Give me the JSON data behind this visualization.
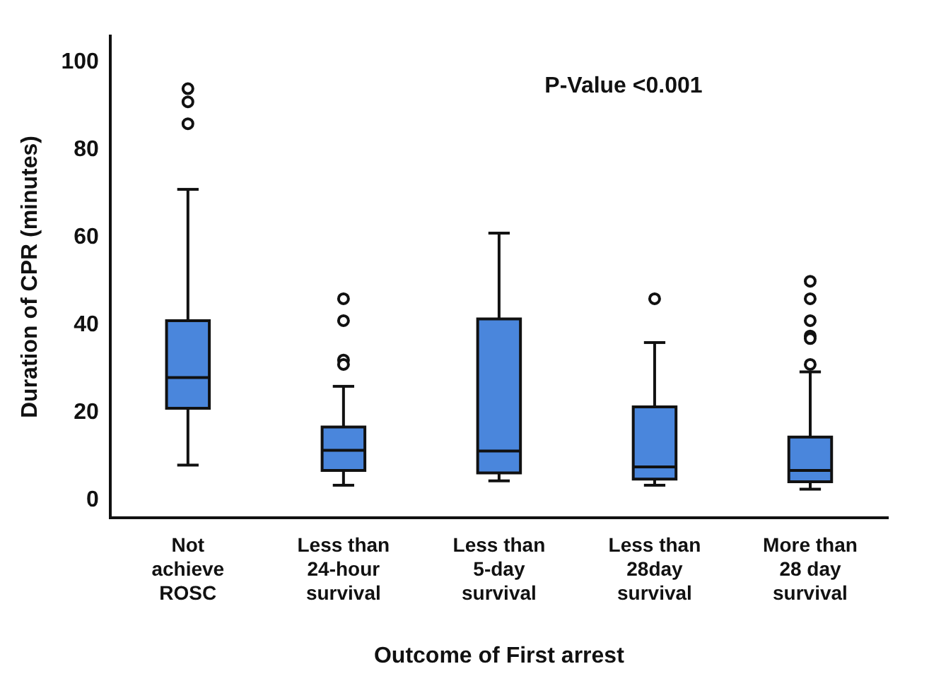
{
  "chart_data": {
    "type": "box",
    "xlabel": "Outcome of First arrest",
    "ylabel": "Duration of CPR (minutes)",
    "annotations": [
      "P-Value <0.001"
    ],
    "categories": [
      "Not achieve ROSC",
      "Less than 24-hour survival",
      "Less than 5-day survival",
      "Less than 28day survival",
      "More than 28 day survival"
    ],
    "series": [
      {
        "color": "#4a86dc",
        "boxes": [
          {
            "low": 8,
            "q1": 21,
            "median": 28,
            "q3": 41,
            "high": 71,
            "outliers": [
              94,
              91,
              86
            ]
          },
          {
            "low": 3.4,
            "q1": 6.8,
            "median": 11.4,
            "q3": 16.7,
            "high": 26,
            "outliers": [
              46,
              41,
              32,
              31
            ]
          },
          {
            "low": 4.4,
            "q1": 6.2,
            "median": 11.2,
            "q3": 41.4,
            "high": 61
          },
          {
            "low": 3.4,
            "q1": 4.8,
            "median": 7.6,
            "q3": 21.3,
            "high": 36,
            "outliers": [
              46
            ]
          },
          {
            "low": 2.5,
            "q1": 4.2,
            "median": 6.8,
            "q3": 14.4,
            "high": 29.3,
            "outliers": [
              50,
              46,
              41,
              37.5,
              36.9,
              31
            ]
          }
        ]
      }
    ],
    "ylim": [
      -4,
      106
    ],
    "yticks": [
      0,
      20,
      40,
      60,
      80,
      100
    ],
    "grid": false,
    "legend": false,
    "marker": "circle"
  }
}
